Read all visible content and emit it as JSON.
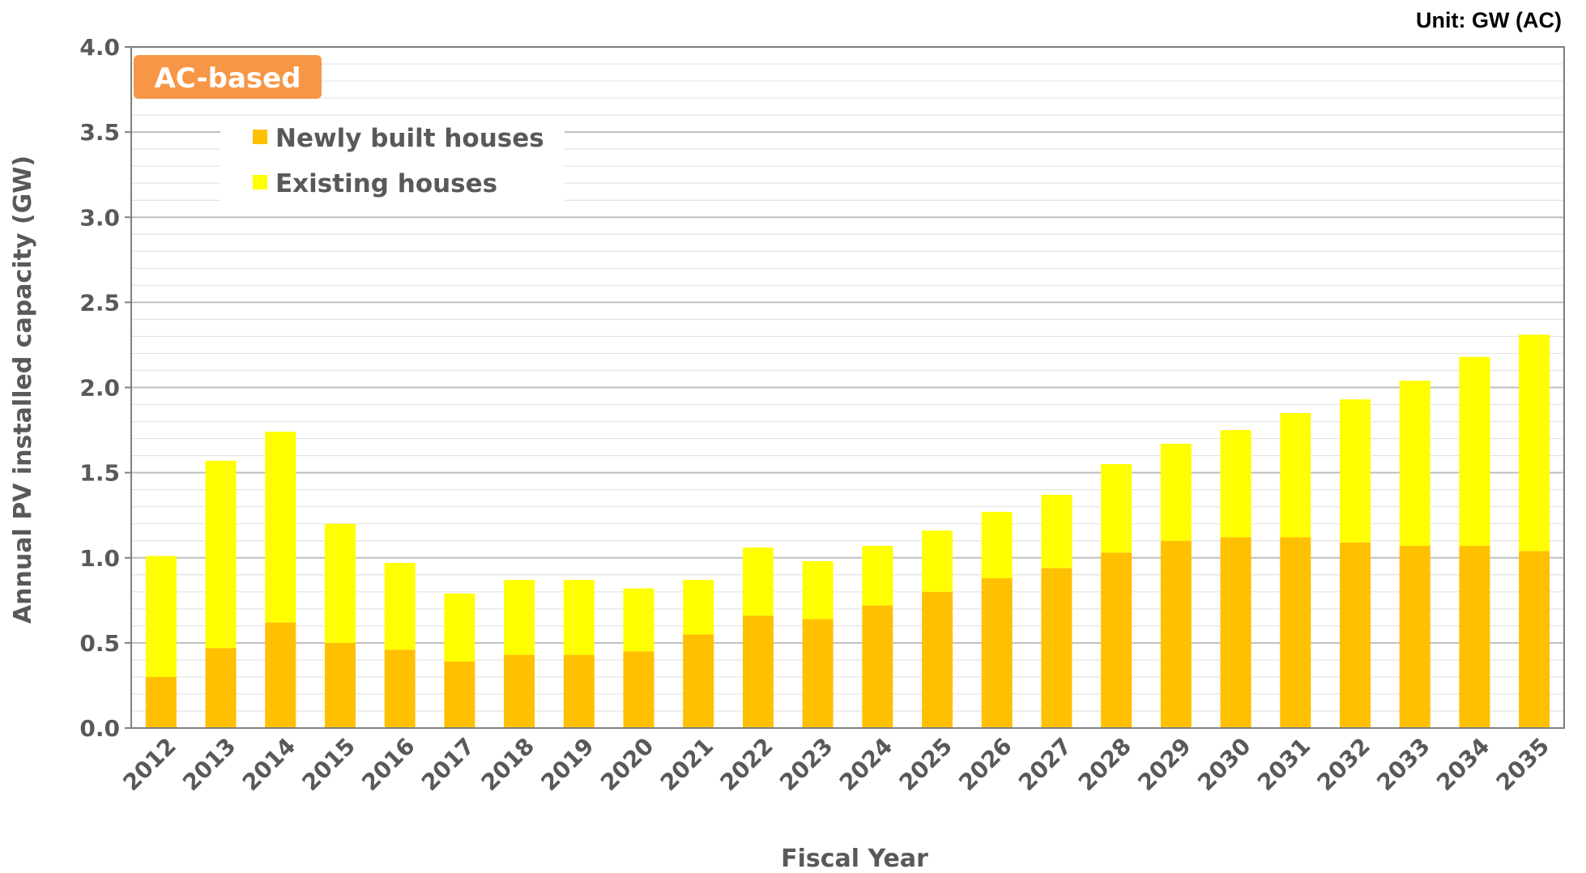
{
  "unit_label": "Unit: GW (AC)",
  "badge": {
    "label": "AC-based",
    "color": "#F79646"
  },
  "colors": {
    "newly_built": "#FFC000",
    "existing": "#FFFF00",
    "grid_major": "#BFBFBF",
    "grid_minor": "#E3E3E3",
    "axis": "#7F7F7F",
    "text": "#595959"
  },
  "chart_data": {
    "type": "bar",
    "stacked": true,
    "title": "",
    "xlabel": "Fiscal Year",
    "ylabel": "Annual PV installed capacity (GW)",
    "ylim": [
      0,
      4.0
    ],
    "yticks": [
      "0.0",
      "0.5",
      "1.0",
      "1.5",
      "2.0",
      "2.5",
      "3.0",
      "3.5",
      "4.0"
    ],
    "minor_gridlines": true,
    "legend_position": "top-left",
    "categories": [
      "2012",
      "2013",
      "2014",
      "2015",
      "2016",
      "2017",
      "2018",
      "2019",
      "2020",
      "2021",
      "2022",
      "2023",
      "2024",
      "2025",
      "2026",
      "2027",
      "2028",
      "2029",
      "2030",
      "2031",
      "2032",
      "2033",
      "2034",
      "2035"
    ],
    "series": [
      {
        "name": "Newly built houses",
        "color": "#FFC000",
        "values": [
          0.3,
          0.47,
          0.62,
          0.5,
          0.46,
          0.39,
          0.43,
          0.43,
          0.45,
          0.55,
          0.66,
          0.64,
          0.72,
          0.8,
          0.88,
          0.94,
          1.03,
          1.1,
          1.12,
          1.12,
          1.09,
          1.07,
          1.07,
          1.04
        ]
      },
      {
        "name": "Existing houses",
        "color": "#FFFF00",
        "values": [
          0.71,
          1.1,
          1.12,
          0.7,
          0.51,
          0.4,
          0.44,
          0.44,
          0.37,
          0.32,
          0.4,
          0.34,
          0.35,
          0.36,
          0.39,
          0.43,
          0.52,
          0.57,
          0.63,
          0.73,
          0.84,
          0.97,
          1.11,
          1.27
        ]
      }
    ]
  }
}
